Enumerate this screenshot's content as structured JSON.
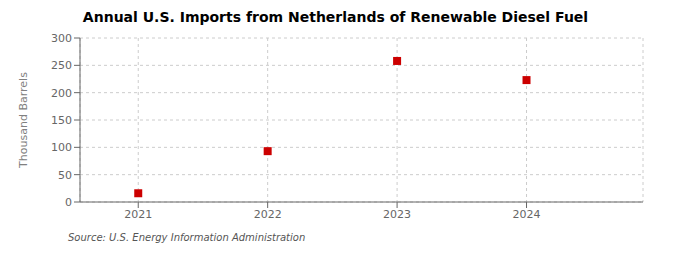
{
  "chart_data": {
    "type": "scatter",
    "title": "Annual U.S. Imports from Netherlands of Renewable Diesel Fuel",
    "ylabel": "Thousand Barrels",
    "annotations": [
      "Source: U.S. Energy Information Administration"
    ],
    "x": [
      2021,
      2022,
      2023,
      2024
    ],
    "values": [
      16,
      93,
      258,
      223
    ],
    "xlim": [
      2020.55,
      2024.9
    ],
    "xticks": [
      2021,
      2022,
      2023,
      2024
    ],
    "ylim": [
      0,
      300
    ],
    "yticks": [
      0,
      50,
      100,
      150,
      200,
      250,
      300
    ],
    "grid": true,
    "color": "#cc0000",
    "marker": "square"
  }
}
